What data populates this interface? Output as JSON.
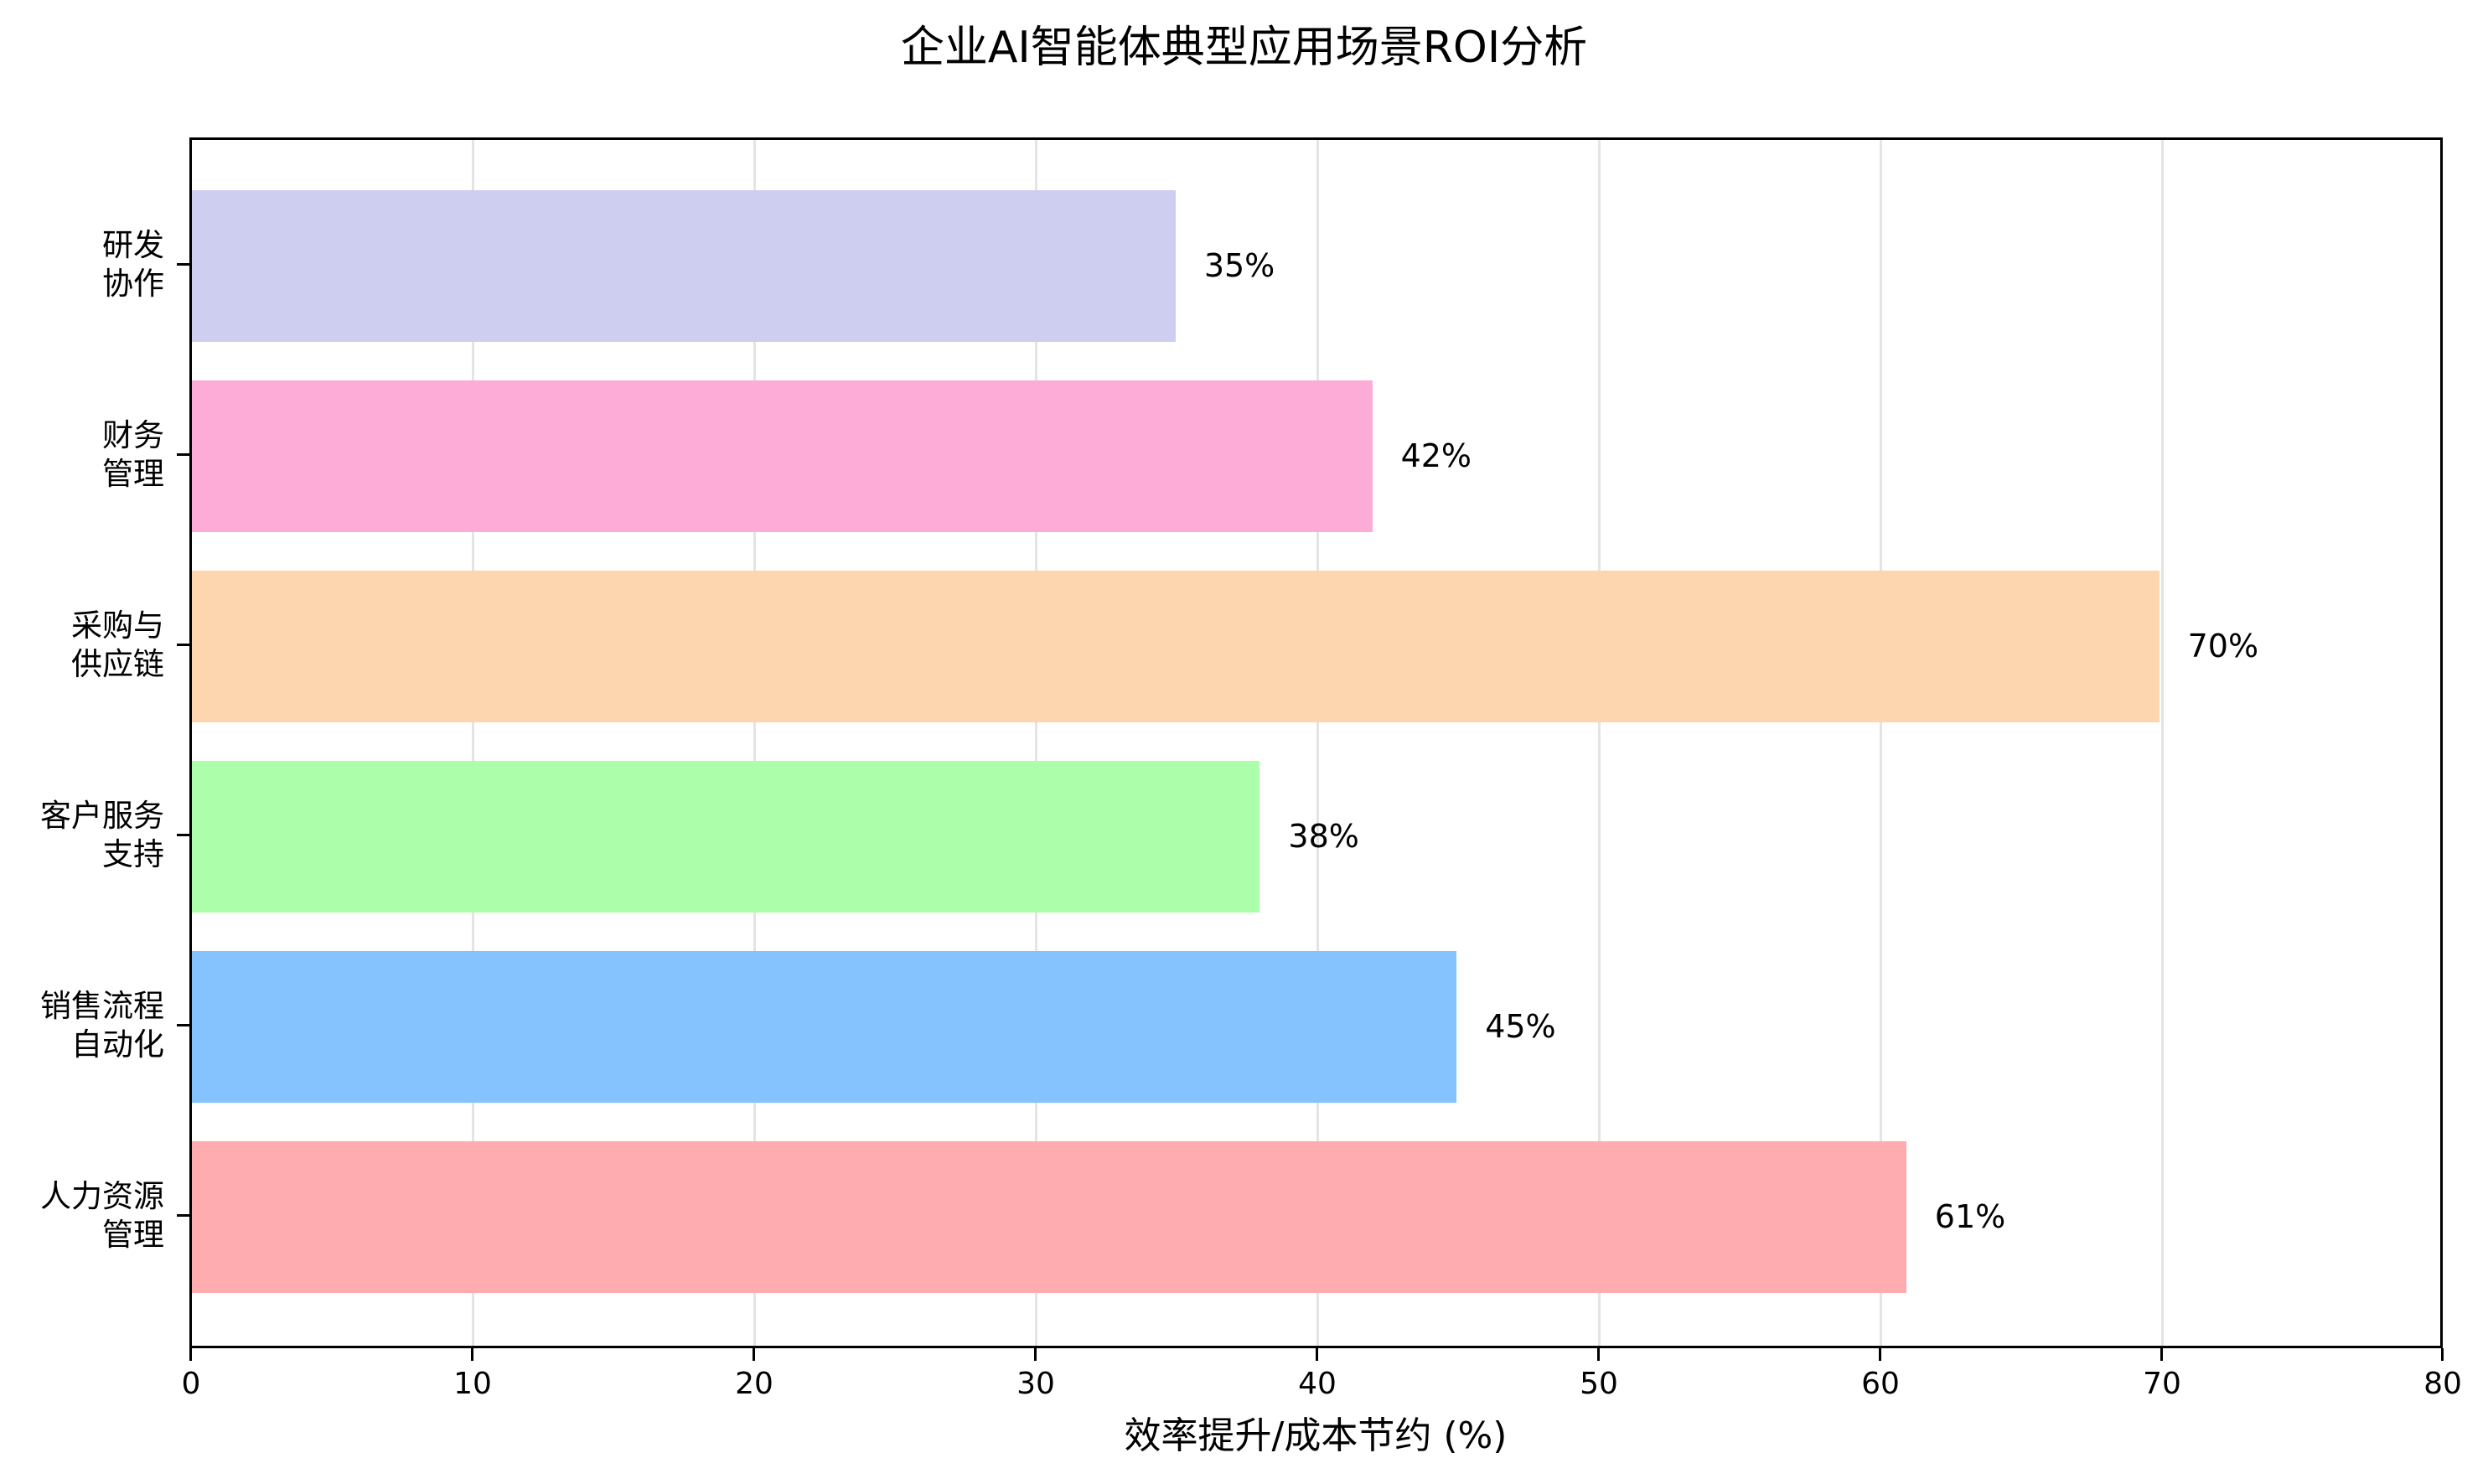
{
  "chart_data": {
    "type": "bar",
    "orientation": "horizontal",
    "title": "企业AI智能体典型应用场景ROI分析",
    "xlabel": "效率提升/成本节约 (%)",
    "ylabel": "",
    "xlim": [
      0,
      80
    ],
    "xticks": [
      0,
      10,
      20,
      30,
      40,
      50,
      60,
      70,
      80
    ],
    "grid": "x",
    "legend": "none",
    "categories": [
      "研发\n协作",
      "财务\n管理",
      "采购与\n供应链",
      "客户服务\n支持",
      "销售流程\n自动化",
      "人力资源\n管理"
    ],
    "values": [
      35,
      42,
      70,
      38,
      45,
      61
    ],
    "value_labels": [
      "35%",
      "42%",
      "70%",
      "38%",
      "45%",
      "61%"
    ],
    "colors": [
      "#CECEF0",
      "#FDACD7",
      "#FDD6AF",
      "#ADFEAA",
      "#84C3FD",
      "#FEACAF"
    ]
  },
  "title": "企业AI智能体典型应用场景ROI分析",
  "xlabel": "效率提升/成本节约 (%)",
  "xticks": [
    "0",
    "10",
    "20",
    "30",
    "40",
    "50",
    "60",
    "70",
    "80"
  ],
  "bars": [
    {
      "line1": "研发",
      "line2": "协作",
      "value": 35,
      "label": "35%",
      "color": "#CECEF0"
    },
    {
      "line1": "财务",
      "line2": "管理",
      "value": 42,
      "label": "42%",
      "color": "#FDACD7"
    },
    {
      "line1": "采购与",
      "line2": "供应链",
      "value": 70,
      "label": "70%",
      "color": "#FDD6AF"
    },
    {
      "line1": "客户服务",
      "line2": "支持",
      "value": 38,
      "label": "38%",
      "color": "#ADFEAA"
    },
    {
      "line1": "销售流程",
      "line2": "自动化",
      "value": 45,
      "label": "45%",
      "color": "#84C3FD"
    },
    {
      "line1": "人力资源",
      "line2": "管理",
      "value": 61,
      "label": "61%",
      "color": "#FEACAF"
    }
  ]
}
